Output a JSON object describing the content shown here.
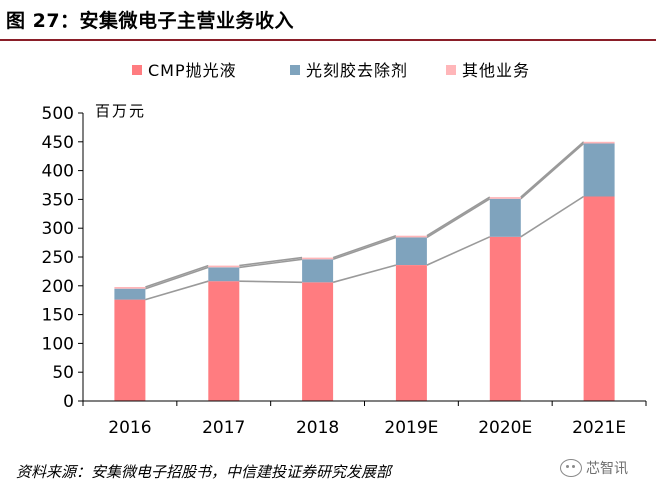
{
  "figure_title": "图 27：安集微电子主营业务收入",
  "source_note": "资料来源：安集微电子招股书，中信建投证券研究发展部",
  "watermark": "芯智讯",
  "chart_data": {
    "type": "bar",
    "stacked": true,
    "unit_label": "百万元",
    "categories": [
      "2016",
      "2017",
      "2018",
      "2019E",
      "2020E",
      "2021E"
    ],
    "series": [
      {
        "name": "CMP抛光液",
        "color": "#ff7c80",
        "values": [
          176,
          208,
          206,
          236,
          285,
          355
        ]
      },
      {
        "name": "光刻胶去除剂",
        "color": "#7fa3bd",
        "values": [
          19,
          24,
          40,
          48,
          66,
          92
        ]
      },
      {
        "name": "其他业务",
        "color": "#ffb6b9",
        "values": [
          3,
          3,
          3,
          3,
          3,
          3
        ]
      }
    ],
    "ylim": [
      0,
      500
    ],
    "yticks": [
      0,
      50,
      100,
      150,
      200,
      250,
      300,
      350,
      400,
      450,
      500
    ],
    "legend_position": "top",
    "connector_lines": true,
    "grid": false
  }
}
